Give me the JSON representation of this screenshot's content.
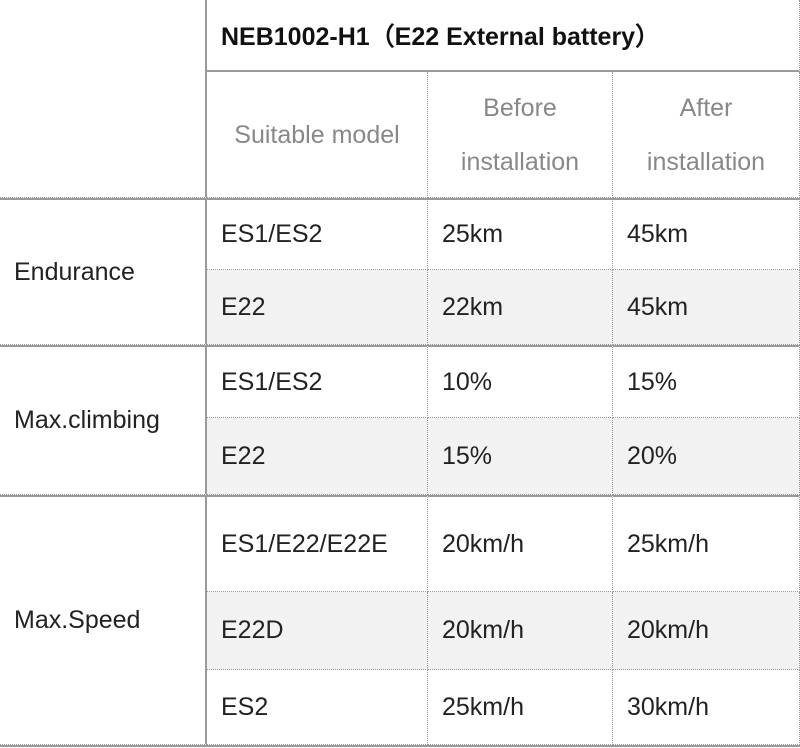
{
  "table": {
    "title": "NEB1002-H1（E22 External battery）",
    "columns": [
      "Suitable model",
      "Before installation",
      "After installation"
    ],
    "groups": [
      {
        "label": "Endurance",
        "rows": [
          [
            "ES1/ES2",
            "25km",
            "45km"
          ],
          [
            "E22",
            "22km",
            "45km"
          ]
        ]
      },
      {
        "label": "Max.climbing",
        "rows": [
          [
            "ES1/ES2",
            "10%",
            "15%"
          ],
          [
            "E22",
            "15%",
            "20%"
          ]
        ]
      },
      {
        "label": "Max.Speed",
        "rows": [
          [
            "ES1/E22/E22E",
            "20km/h",
            "25km/h"
          ],
          [
            "E22D",
            "20km/h",
            "20km/h"
          ],
          [
            "ES2",
            "25km/h",
            "30km/h"
          ]
        ]
      }
    ]
  }
}
